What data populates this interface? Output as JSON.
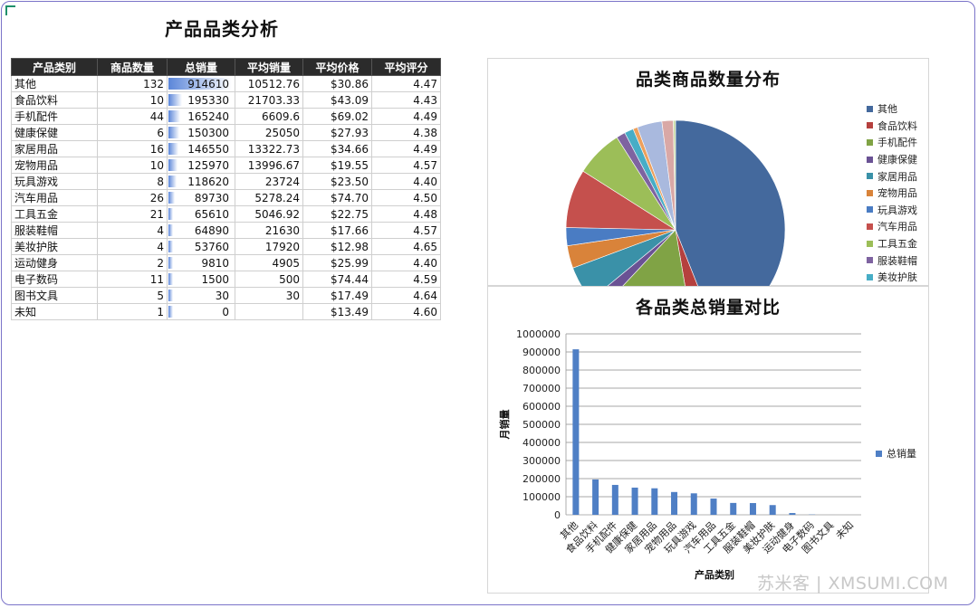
{
  "sheet": {
    "title": "产品品类分析"
  },
  "table": {
    "headers": [
      "产品类别",
      "商品数量",
      "总销量",
      "平均销量",
      "平均价格",
      "平均评分"
    ],
    "rows": [
      [
        "其他",
        "132",
        "914610",
        "10512.76",
        "$30.86",
        "4.47"
      ],
      [
        "食品饮料",
        "10",
        "195330",
        "21703.33",
        "$43.09",
        "4.43"
      ],
      [
        "手机配件",
        "44",
        "165240",
        "6609.6",
        "$69.02",
        "4.49"
      ],
      [
        "健康保健",
        "6",
        "150300",
        "25050",
        "$27.93",
        "4.38"
      ],
      [
        "家居用品",
        "16",
        "146550",
        "13322.73",
        "$34.66",
        "4.49"
      ],
      [
        "宠物用品",
        "10",
        "125970",
        "13996.67",
        "$19.55",
        "4.57"
      ],
      [
        "玩具游戏",
        "8",
        "118620",
        "23724",
        "$23.50",
        "4.40"
      ],
      [
        "汽车用品",
        "26",
        "89730",
        "5278.24",
        "$74.70",
        "4.50"
      ],
      [
        "工具五金",
        "21",
        "65610",
        "5046.92",
        "$22.75",
        "4.48"
      ],
      [
        "服装鞋帽",
        "4",
        "64890",
        "21630",
        "$17.66",
        "4.57"
      ],
      [
        "美妆护肤",
        "4",
        "53760",
        "17920",
        "$12.98",
        "4.65"
      ],
      [
        "运动健身",
        "2",
        "9810",
        "4905",
        "$25.99",
        "4.40"
      ],
      [
        "电子数码",
        "11",
        "1500",
        "500",
        "$74.44",
        "4.59"
      ],
      [
        "图书文具",
        "5",
        "30",
        "30",
        "$17.49",
        "4.64"
      ],
      [
        "未知",
        "1",
        "0",
        "",
        "$13.49",
        "4.60"
      ]
    ]
  },
  "chart_data": [
    {
      "type": "pie",
      "title": "品类商品数量分布",
      "categories": [
        "其他",
        "食品饮料",
        "手机配件",
        "健康保健",
        "家居用品",
        "宠物用品",
        "玩具游戏",
        "汽车用品",
        "工具五金",
        "服装鞋帽",
        "美妆护肤",
        "运动健身",
        "电子数码",
        "图书文具",
        "未知"
      ],
      "values": [
        132,
        10,
        44,
        6,
        16,
        10,
        8,
        26,
        21,
        4,
        4,
        2,
        11,
        5,
        1
      ],
      "colors": [
        "#44699d",
        "#b5403e",
        "#80a345",
        "#6a5294",
        "#3a91a8",
        "#d9833a",
        "#4a7cc3",
        "#c5504d",
        "#9cbe58",
        "#7e63a0",
        "#47adc6",
        "#eda05c",
        "#a9b9de",
        "#d9a8a6",
        "#c8dba4"
      ],
      "legend_entries": [
        "其他",
        "食品饮料",
        "手机配件",
        "健康保健",
        "家居用品",
        "宠物用品",
        "玩具游戏",
        "汽车用品",
        "工具五金",
        "服装鞋帽",
        "美妆护肤"
      ],
      "legend": "right"
    },
    {
      "type": "bar",
      "title": "各品类总销量对比",
      "categories": [
        "其他",
        "食品饮料",
        "手机配件",
        "健康保健",
        "家居用品",
        "宠物用品",
        "玩具游戏",
        "汽车用品",
        "工具五金",
        "服装鞋帽",
        "美妆护肤",
        "运动健身",
        "电子数码",
        "图书文具",
        "未知"
      ],
      "series": [
        {
          "name": "总销量",
          "values": [
            914610,
            195330,
            165240,
            150300,
            146550,
            125970,
            118620,
            89730,
            65610,
            64890,
            53760,
            9810,
            1500,
            30,
            0
          ]
        }
      ],
      "xlabel": "产品类别",
      "ylabel": "月销量",
      "ylim": [
        0,
        1000000
      ],
      "yticks": [
        "0",
        "100000",
        "200000",
        "300000",
        "400000",
        "500000",
        "600000",
        "700000",
        "800000",
        "900000",
        "1000000"
      ],
      "grid": true,
      "legend": "right",
      "bar_color": "#4f7fc5"
    }
  ],
  "watermark": "苏米客 | XMSUMI.COM"
}
